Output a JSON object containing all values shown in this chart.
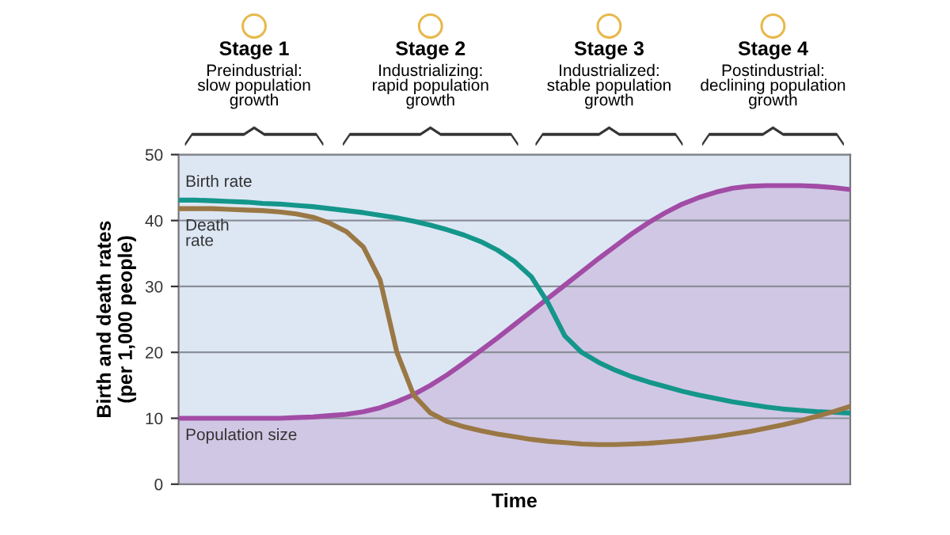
{
  "chart_data": {
    "type": "line",
    "xlabel": "Time",
    "ylabel": "Birth and death rates\n(per 1,000 people)",
    "annotations": [
      "Stage 1",
      "Preindustrial:\nslow population\ngrowth",
      "Stage 2",
      "Industrializing:\nrapid population\ngrowth",
      "Stage 3",
      "Industrialized:\nstable population\ngrowth",
      "Stage 4",
      "Postindustrial:\ndeclining population\ngrowth"
    ],
    "categories": [
      null,
      null,
      null,
      null,
      null,
      null,
      null,
      null,
      null,
      null,
      null,
      null,
      null,
      null,
      null,
      null,
      null,
      null,
      null,
      null,
      null,
      null,
      null,
      null,
      null,
      null,
      null,
      null,
      null,
      null,
      null,
      null,
      null,
      null,
      null,
      null,
      null,
      null,
      null,
      null,
      null
    ],
    "series": [
      {
        "name": "Birth rate",
        "color": "#14968a",
        "values": [
          43.1,
          43.1,
          43,
          42.9,
          42.8,
          42.6,
          42.5,
          42.3,
          42.1,
          41.8,
          41.5,
          41.2,
          40.8,
          40.4,
          39.9,
          39.3,
          38.6,
          37.8,
          36.8,
          35.5,
          33.8,
          31.5,
          27.5,
          22.5,
          20,
          18.5,
          17.3,
          16.3,
          15.5,
          14.8,
          14.1,
          13.5,
          13,
          12.5,
          12.1,
          11.7,
          11.4,
          11.2,
          11,
          10.9,
          10.8
        ]
      },
      {
        "name": "Death\nrate",
        "color": "#9a7845",
        "values": [
          41.8,
          41.8,
          41.8,
          41.7,
          41.6,
          41.5,
          41.3,
          41,
          40.5,
          39.6,
          38.3,
          36,
          31,
          20,
          13.5,
          10.8,
          9.5,
          8.7,
          8.1,
          7.6,
          7.2,
          6.8,
          6.5,
          6.3,
          6.1,
          6,
          6,
          6.1,
          6.2,
          6.4,
          6.6,
          6.9,
          7.2,
          7.6,
          8,
          8.5,
          9,
          9.6,
          10.3,
          11,
          11.8
        ]
      },
      {
        "name": "Population size",
        "type": "area",
        "color": "#a24ca6",
        "values": [
          10,
          10,
          10,
          10,
          10,
          10,
          10,
          10.1,
          10.2,
          10.4,
          10.6,
          11,
          11.6,
          12.5,
          13.6,
          15,
          16.6,
          18.4,
          20.3,
          22.2,
          24.2,
          26.2,
          28.2,
          30.2,
          32.2,
          34.2,
          36.1,
          38,
          39.7,
          41.2,
          42.5,
          43.5,
          44.3,
          44.9,
          45.2,
          45.3,
          45.3,
          45.3,
          45.2,
          45,
          44.7
        ]
      }
    ],
    "ylim": [
      0,
      50
    ],
    "yticks": [
      0,
      10,
      20,
      30,
      40,
      50
    ],
    "grid": "y",
    "legend": false,
    "marker": "none",
    "line_style": "solid",
    "tick_labels": "y"
  }
}
